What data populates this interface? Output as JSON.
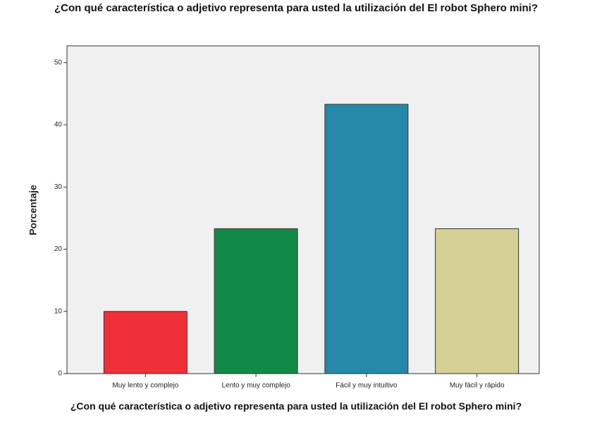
{
  "chart_data": {
    "type": "bar",
    "title": "¿Con qué característica o adjetivo representa para usted la utilización del El robot Sphero mini?",
    "x_label": "¿Con qué característica o adjetivo representa para usted la utilización del El robot Sphero mini?",
    "y_label": "Porcentaje",
    "categories": [
      "Muy lento y complejo",
      "Lento y muy complejo",
      "Fácil y muy intuitivo",
      "Muy fácil y rápido"
    ],
    "values": [
      10,
      23.3,
      43.3,
      23.3
    ],
    "colors": [
      "#ef3038",
      "#128a47",
      "#2688a9",
      "#d5d096"
    ],
    "ylim": [
      0,
      52.7
    ],
    "yticks": [
      0,
      10,
      20,
      30,
      40,
      50
    ]
  }
}
